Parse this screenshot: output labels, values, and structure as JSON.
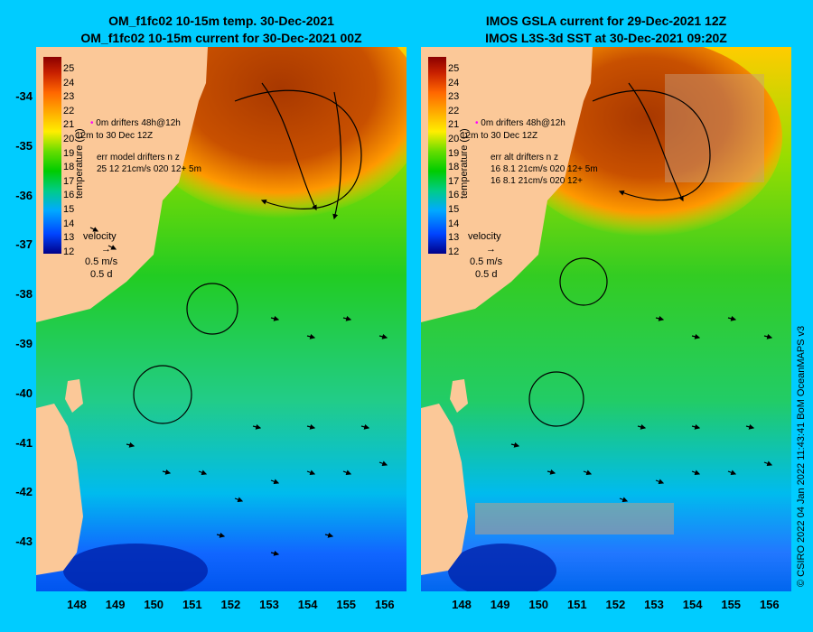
{
  "left_panel": {
    "title_line1": "OM_f1fc02 10-15m temp. 30-Dec-2021",
    "title_line2": "OM_f1fc02 10-15m current for 30-Dec-2021 00Z",
    "legend_drifters": "drifters 48h@12h",
    "legend_drifter_time": "to 30 Dec 12Z",
    "legend_0m": "0m",
    "legend_12m": "12m",
    "legend_err_title": "err model drifters n  z",
    "legend_err_row1": "25 12 21cm/s 020 12+ 5m"
  },
  "right_panel": {
    "title_line1": "IMOS GSLA current for 29-Dec-2021 12Z",
    "title_line2": "IMOS L3S-3d SST at 30-Dec-2021 09:20Z",
    "legend_drifters": "drifters 48h@12h",
    "legend_drifter_time": "to 30 Dec 12Z",
    "legend_0m": "0m",
    "legend_12m": "12m",
    "legend_err_title": "err alt drifters n  z",
    "legend_err_row1": "16 8.1 21cm/s 020 12+ 5m",
    "legend_err_row2": "16 8.1 21cm/s 020 12+"
  },
  "colorbar": {
    "unit_label": "temperature (C)",
    "ticks": [
      "25",
      "24",
      "23",
      "22",
      "21",
      "20",
      "19",
      "18",
      "17",
      "16",
      "15",
      "14",
      "13",
      "12"
    ]
  },
  "velocity_key": {
    "label": "velocity",
    "speed": "0.5 m/s",
    "duration": "0.5 d"
  },
  "axes": {
    "y_labels": [
      "-34",
      "-35",
      "-36",
      "-37",
      "-38",
      "-39",
      "-40",
      "-41",
      "-42",
      "-43"
    ],
    "x_labels": [
      "148",
      "149",
      "150",
      "151",
      "152",
      "153",
      "154",
      "155",
      "156"
    ]
  },
  "credit": "© CSIRO 2022   04 Jan 2022 11:43:41 BoM OceanMAPS v3",
  "colors": {
    "background": "#00ccff",
    "land": "#fbc898",
    "warm_core": "#b84000",
    "warm": "#ffbb00",
    "mid": "#44dd00",
    "cool": "#22cc88",
    "cold": "#00aaff",
    "coldest": "#001a99"
  }
}
